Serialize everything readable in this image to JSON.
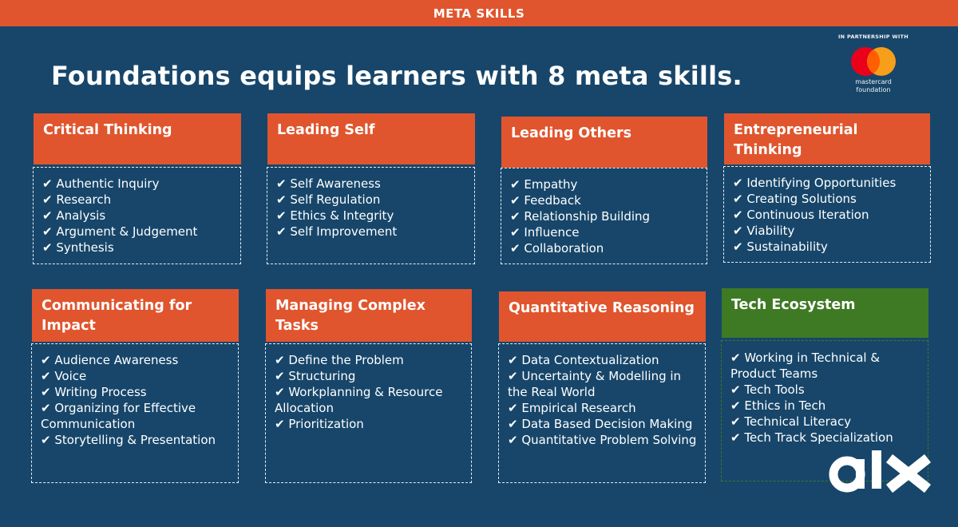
{
  "header": {
    "title": "META SKILLS"
  },
  "headline": "Foundations equips learners with 8 meta skills.",
  "partner": {
    "caption": "IN PARTNERSHIP WITH",
    "name_line1": "mastercard",
    "name_line2": "foundation"
  },
  "logo": {
    "text": "alx"
  },
  "colors": {
    "background": "#17466a",
    "accent": "#e0552d",
    "green": "#3e7a24",
    "mc_red": "#eb001b",
    "mc_yellow": "#f79e1b",
    "mc_orange": "#ff5f00"
  },
  "cards": [
    {
      "title": "Critical Thinking",
      "items": [
        "✔ Authentic Inquiry",
        "✔ Research",
        "✔ Analysis",
        "✔ Argument & Judgement",
        "✔ Synthesis"
      ]
    },
    {
      "title": "Leading Self",
      "items": [
        "✔ Self Awareness",
        "✔ Self Regulation",
        "✔ Ethics & Integrity",
        "✔ Self Improvement"
      ]
    },
    {
      "title": "Leading Others",
      "items": [
        "✔ Empathy",
        "✔ Feedback",
        "✔ Relationship Building",
        "✔ Influence",
        "✔ Collaboration"
      ]
    },
    {
      "title": "Entrepreneurial Thinking",
      "items": [
        "✔ Identifying Opportunities",
        "✔ Creating Solutions",
        "✔ Continuous Iteration",
        "✔ Viability",
        "✔ Sustainability"
      ]
    },
    {
      "title": "Communicating for Impact",
      "items": [
        "✔ Audience Awareness",
        "✔ Voice",
        "✔ Writing Process",
        "✔ Organizing for Effective Communication",
        "✔ Storytelling & Presentation"
      ]
    },
    {
      "title": "Managing Complex Tasks",
      "items": [
        "✔ Define the Problem",
        "✔ Structuring",
        "✔ Workplanning & Resource Allocation",
        "✔ Prioritization"
      ]
    },
    {
      "title": "Quantitative Reasoning",
      "items": [
        "✔ Data Contextualization",
        "✔ Uncertainty & Modelling in the Real World",
        "✔ Empirical Research",
        "✔ Data Based Decision Making",
        "✔ Quantitative Problem Solving"
      ]
    },
    {
      "title": "Tech Ecosystem",
      "items": [
        "✔ Working in Technical & Product Teams",
        "✔ Tech Tools",
        "✔ Ethics in Tech",
        "✔ Technical Literacy",
        "✔ Tech Track Specialization"
      ]
    }
  ]
}
